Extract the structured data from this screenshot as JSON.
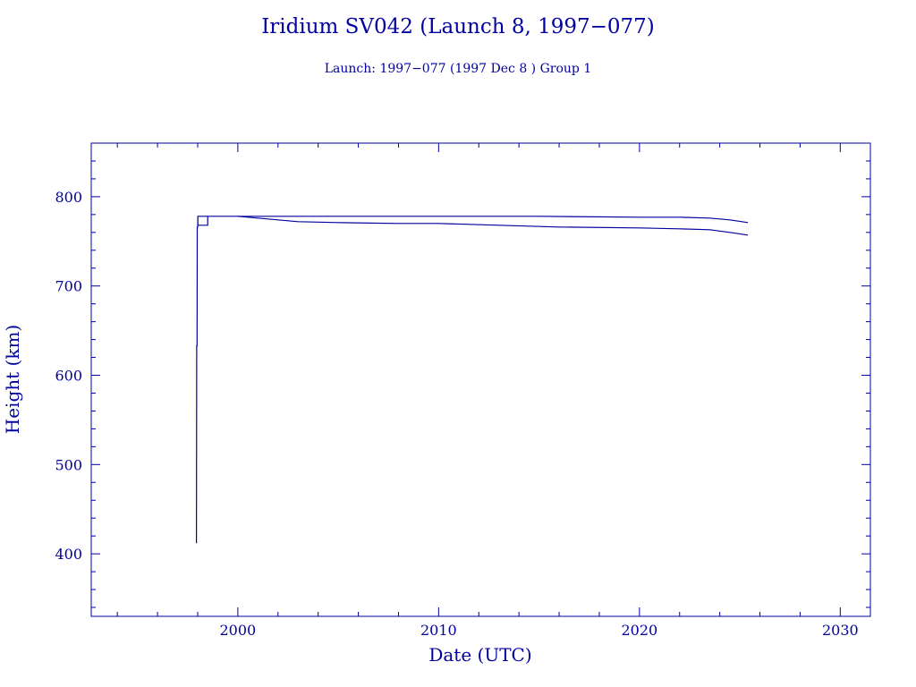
{
  "chart_data": {
    "type": "line",
    "title": "Iridium SV042 (Launch 8, 1997−077)",
    "subtitle": "Launch: 1997−077  (1997 Dec  8 )  Group 1",
    "xlabel": "Date (UTC)",
    "ylabel": "Height (km)",
    "xlim": [
      1992.7,
      2031.5
    ],
    "ylim": [
      330,
      860
    ],
    "x_ticks": [
      2000,
      2010,
      2020,
      2030
    ],
    "x_tick_labels": [
      "2000",
      "2010",
      "2020",
      "2030"
    ],
    "y_ticks": [
      400,
      500,
      600,
      700,
      800
    ],
    "y_tick_labels": [
      "400",
      "500",
      "600",
      "700",
      "800"
    ],
    "grid": false,
    "color": "#0000a0",
    "series": [
      {
        "values": [
          [
            1997.94,
            412
          ],
          [
            1997.95,
            633
          ],
          [
            1997.97,
            633
          ],
          [
            1997.98,
            766
          ],
          [
            1998.0,
            766
          ],
          [
            1998.01,
            778
          ],
          [
            1998.5,
            778
          ],
          [
            1998.5,
            768
          ],
          [
            1998.01,
            768
          ],
          [
            1998.01,
            778
          ],
          [
            2000,
            778
          ],
          [
            2005,
            778
          ],
          [
            2010,
            778
          ],
          [
            2015,
            778
          ],
          [
            2020,
            777
          ],
          [
            2022,
            777
          ],
          [
            2023.5,
            776
          ],
          [
            2024.5,
            774
          ],
          [
            2025.4,
            771
          ]
        ]
      },
      {
        "values": [
          [
            2000,
            778
          ],
          [
            2001,
            776
          ],
          [
            2002,
            774
          ],
          [
            2003,
            772
          ],
          [
            2005,
            771
          ],
          [
            2008,
            770
          ],
          [
            2010,
            770
          ],
          [
            2013,
            768
          ],
          [
            2016,
            766
          ],
          [
            2020,
            765
          ],
          [
            2022,
            764
          ],
          [
            2023.5,
            763
          ],
          [
            2024.5,
            760
          ],
          [
            2025.4,
            757
          ]
        ]
      }
    ]
  }
}
